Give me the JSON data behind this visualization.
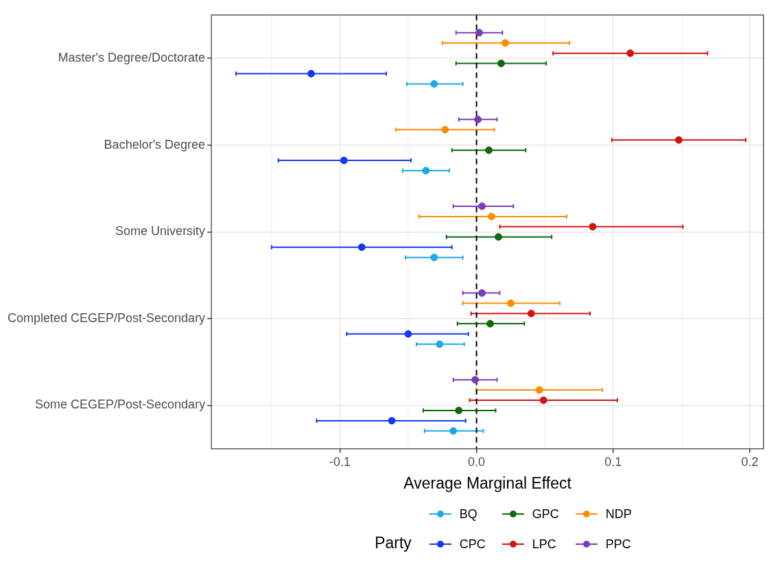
{
  "chart_data": {
    "type": "scatter",
    "orientation": "horizontal",
    "xlabel": "Average Marginal Effect",
    "legend_title": "Party",
    "legend": "bottom",
    "grid": true,
    "marker": "circle",
    "categories": [
      "Master's Degree/Doctorate",
      "Bachelor's Degree",
      "Some University",
      "Completed CEGEP/Post-Secondary",
      "Some CEGEP/Post-Secondary"
    ],
    "xlim": [
      -0.194,
      0.21
    ],
    "xticks": [
      {
        "value": -0.15,
        "label": null
      },
      {
        "value": -0.1,
        "label": "-0.1"
      },
      {
        "value": -0.05,
        "label": null
      },
      {
        "value": 0,
        "label": "0.0"
      },
      {
        "value": 0.05,
        "label": null
      },
      {
        "value": 0.1,
        "label": "0.1"
      },
      {
        "value": 0.15,
        "label": null
      },
      {
        "value": 0.2,
        "label": "0.2"
      }
    ],
    "ref_lines": [
      {
        "axis": "x",
        "value": 0,
        "color": "#000000",
        "line_style": "dashed"
      }
    ],
    "series": [
      {
        "name": "BQ",
        "color": "#1ca9e6",
        "values": [
          -0.031,
          -0.037,
          -0.031,
          -0.027,
          -0.017
        ],
        "errors": [
          [
            -0.051,
            -0.01
          ],
          [
            -0.054,
            -0.02
          ],
          [
            -0.052,
            -0.01
          ],
          [
            -0.044,
            -0.009
          ],
          [
            -0.038,
            0.005
          ]
        ]
      },
      {
        "name": "CPC",
        "color": "#1637f5",
        "values": [
          -0.121,
          -0.097,
          -0.084,
          -0.05,
          -0.062
        ],
        "errors": [
          [
            -0.176,
            -0.066
          ],
          [
            -0.145,
            -0.048
          ],
          [
            -0.15,
            -0.018
          ],
          [
            -0.095,
            -0.006
          ],
          [
            -0.117,
            -0.008
          ]
        ]
      },
      {
        "name": "GPC",
        "color": "#0b6a0b",
        "values": [
          0.018,
          0.009,
          0.016,
          0.01,
          -0.013
        ],
        "errors": [
          [
            -0.015,
            0.051
          ],
          [
            -0.018,
            0.036
          ],
          [
            -0.022,
            0.055
          ],
          [
            -0.014,
            0.035
          ],
          [
            -0.039,
            0.014
          ]
        ]
      },
      {
        "name": "LPC",
        "color": "#d31313",
        "values": [
          0.1125,
          0.148,
          0.085,
          0.04,
          0.049
        ],
        "errors": [
          [
            0.056,
            0.169
          ],
          [
            0.099,
            0.197
          ],
          [
            0.017,
            0.151
          ],
          [
            -0.004,
            0.083
          ],
          [
            -0.005,
            0.103
          ]
        ]
      },
      {
        "name": "NDP",
        "color": "#ff8c00",
        "values": [
          0.021,
          -0.023,
          0.011,
          0.025,
          0.046
        ],
        "errors": [
          [
            -0.025,
            0.068
          ],
          [
            -0.059,
            0.013
          ],
          [
            -0.042,
            0.066
          ],
          [
            -0.01,
            0.061
          ],
          [
            0.0,
            0.092
          ]
        ]
      },
      {
        "name": "PPC",
        "color": "#7a3db8",
        "values": [
          0.002,
          0.001,
          0.004,
          0.004,
          -0.001
        ],
        "errors": [
          [
            -0.015,
            0.019
          ],
          [
            -0.013,
            0.015
          ],
          [
            -0.017,
            0.027
          ],
          [
            -0.01,
            0.017
          ],
          [
            -0.017,
            0.015
          ]
        ]
      }
    ]
  }
}
